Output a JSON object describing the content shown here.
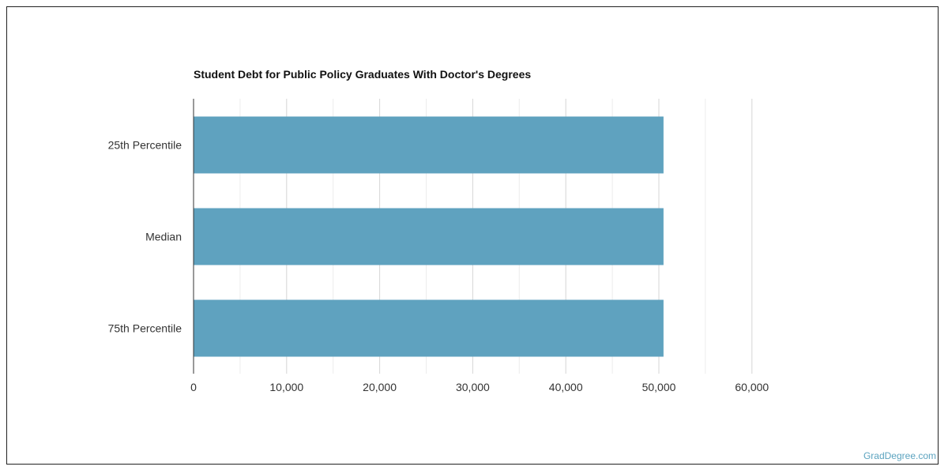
{
  "chart_data": {
    "type": "bar",
    "orientation": "horizontal",
    "title": "Student Debt for Public Policy Graduates With Doctor's Degrees",
    "xlabel": "",
    "ylabel": "",
    "categories": [
      "25th Percentile",
      "Median",
      "75th Percentile"
    ],
    "values": [
      50500,
      50500,
      50500
    ],
    "xlim": [
      0,
      60000
    ],
    "x_ticks": [
      "0",
      "10,000",
      "20,000",
      "30,000",
      "40,000",
      "50,000",
      "60,000"
    ],
    "grid": true,
    "bar_color": "#5fa2bf"
  },
  "watermark": "GradDegree.com"
}
